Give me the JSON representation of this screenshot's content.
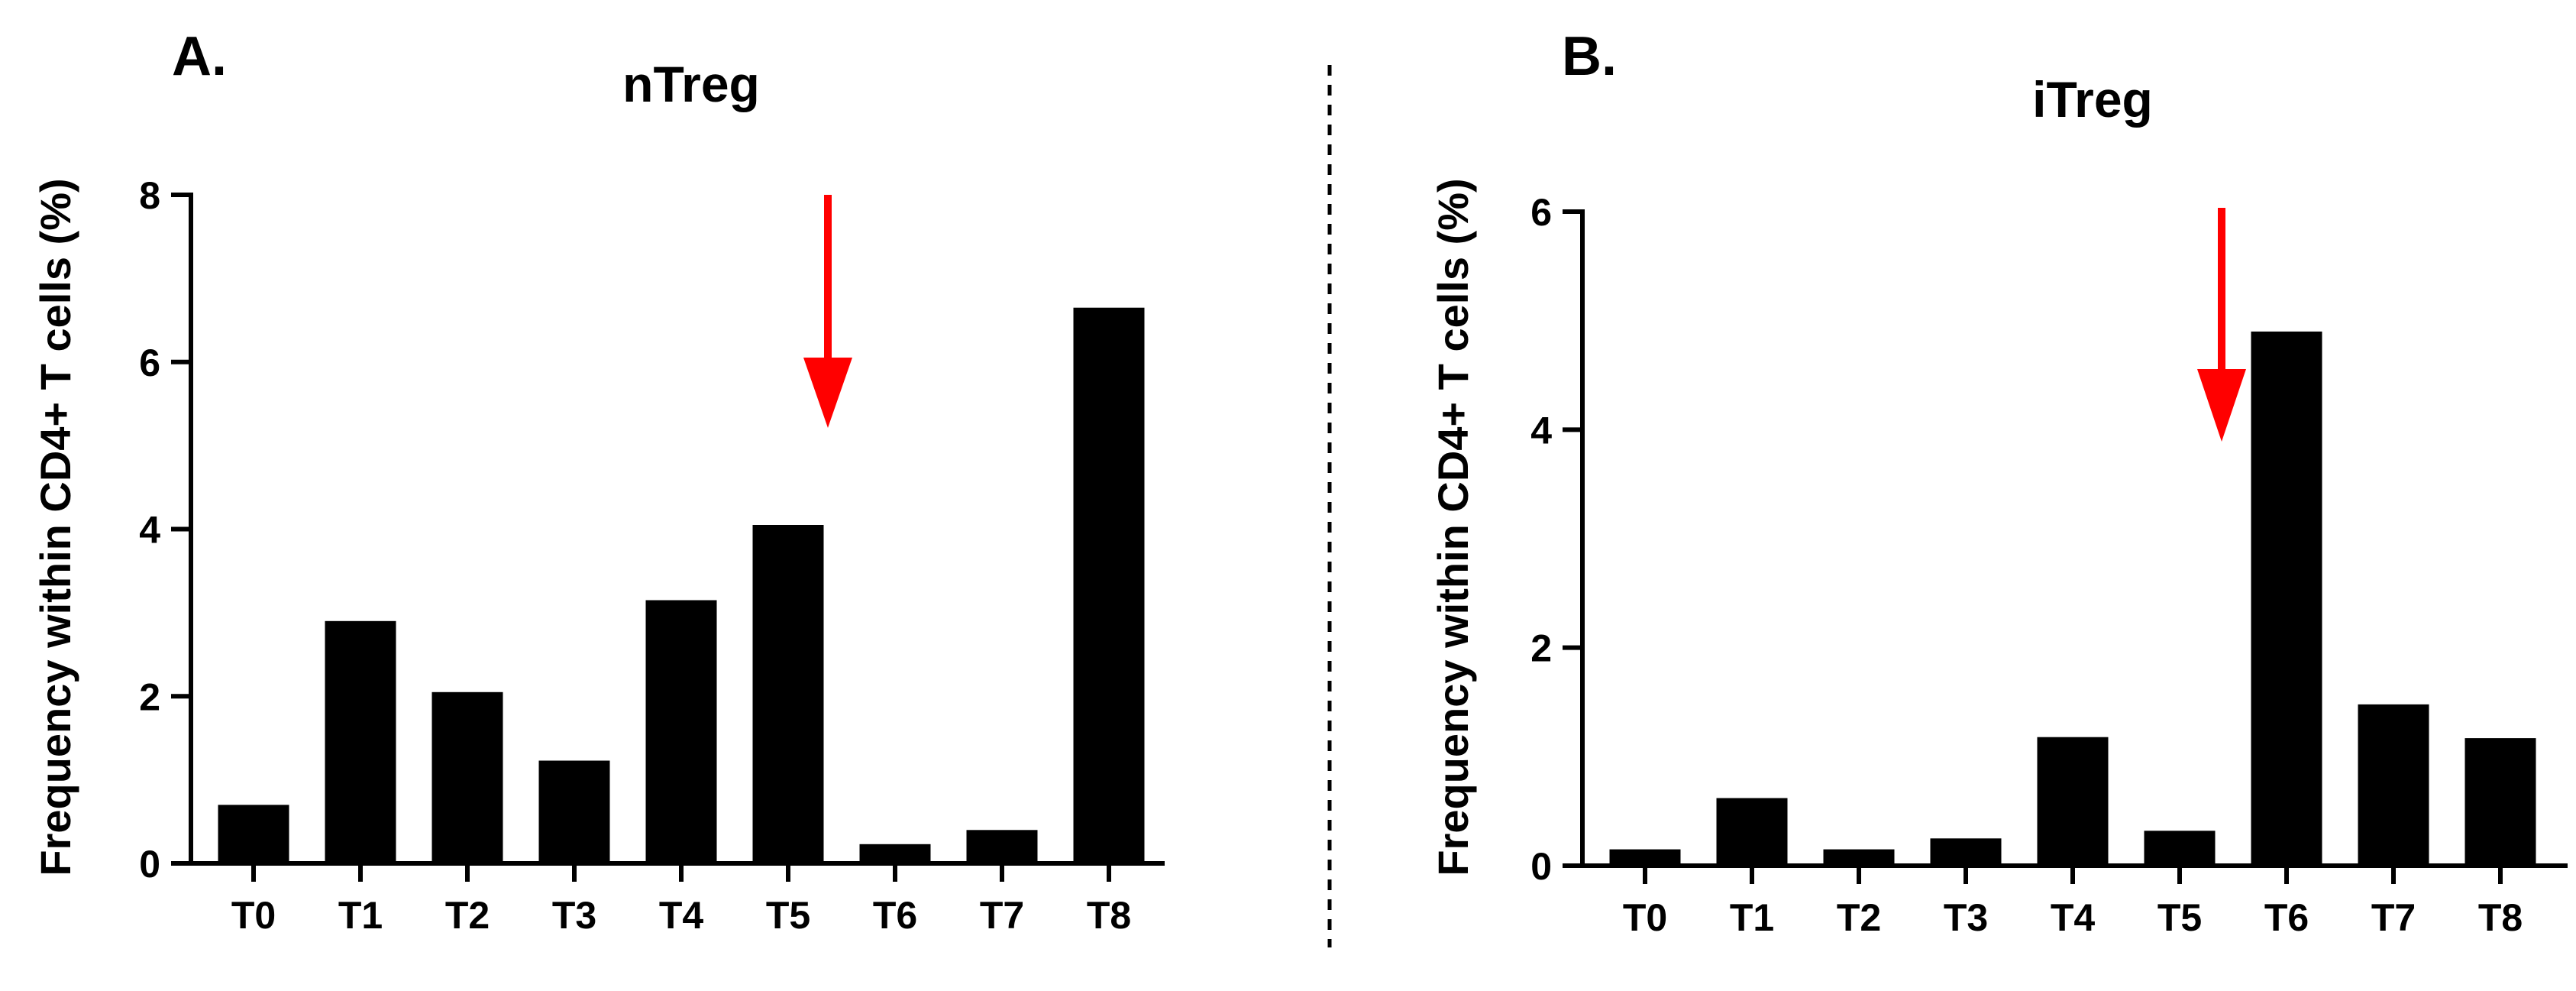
{
  "chart_data": [
    {
      "type": "bar",
      "panel_label": "A.",
      "title": "nTreg",
      "xlabel": "",
      "ylabel": "Frequency within CD4+ T cells (%)",
      "categories": [
        "T0",
        "T1",
        "T2",
        "T3",
        "T4",
        "T5",
        "T6",
        "T7",
        "T8"
      ],
      "values": [
        0.7,
        2.9,
        2.05,
        1.23,
        3.15,
        4.05,
        0.23,
        0.4,
        6.65
      ],
      "ylim": [
        0,
        8
      ],
      "yticks": [
        0,
        2,
        4,
        6,
        8
      ],
      "bar_color": "#000000",
      "annotation": {
        "type": "arrow",
        "color": "#ff0000",
        "points_to": "T5",
        "direction": "down"
      }
    },
    {
      "type": "bar",
      "panel_label": "B.",
      "title": "iTreg",
      "xlabel": "",
      "ylabel": "Frequency within CD4+ T cells (%)",
      "categories": [
        "T0",
        "T1",
        "T2",
        "T3",
        "T4",
        "T5",
        "T6",
        "T7",
        "T8"
      ],
      "values": [
        0.15,
        0.62,
        0.15,
        0.25,
        1.18,
        0.32,
        4.9,
        1.48,
        1.17
      ],
      "ylim": [
        0,
        6
      ],
      "yticks": [
        0,
        2,
        4,
        6
      ],
      "bar_color": "#000000",
      "annotation": {
        "type": "arrow",
        "color": "#ff0000",
        "points_to": "T6",
        "direction": "down"
      }
    }
  ]
}
